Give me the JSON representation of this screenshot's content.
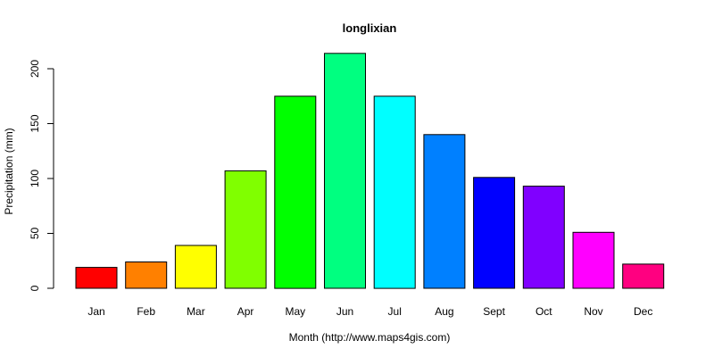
{
  "chart_data": {
    "type": "bar",
    "title": "longlixian",
    "xlabel": "Month (http://www.maps4gis.com)",
    "ylabel": "Precipitation (mm)",
    "categories": [
      "Jan",
      "Feb",
      "Mar",
      "Apr",
      "May",
      "Jun",
      "Jul",
      "Aug",
      "Sept",
      "Oct",
      "Nov",
      "Dec"
    ],
    "values": [
      19,
      24,
      39,
      107,
      175,
      214,
      175,
      140,
      101,
      93,
      51,
      22
    ],
    "colors": [
      "#FF0000",
      "#FF8000",
      "#FFFF00",
      "#80FF00",
      "#00FF00",
      "#00FF80",
      "#00FFFF",
      "#0080FF",
      "#0000FF",
      "#8000FF",
      "#FF00FF",
      "#FF0080"
    ],
    "yticks": [
      0,
      50,
      100,
      150,
      200
    ],
    "ylim": [
      0,
      220
    ],
    "grid": false,
    "legend": "none"
  }
}
